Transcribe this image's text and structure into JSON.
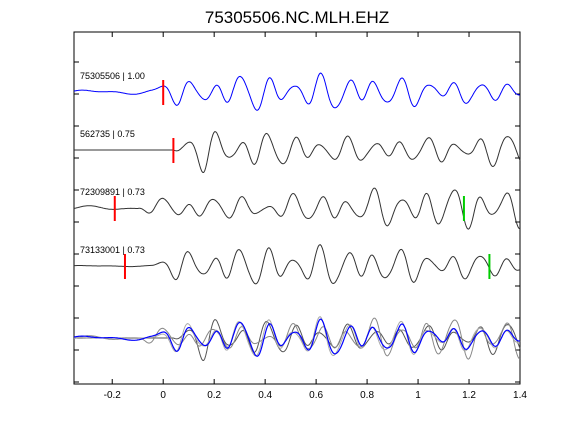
{
  "chart_data": {
    "type": "line",
    "title": "75305506.NC.MLH.EHZ",
    "xlabel": "",
    "ylabel": "",
    "xlim": [
      -0.35,
      1.4
    ],
    "xticks": [
      -0.2,
      0,
      0.2,
      0.4,
      0.6,
      0.8,
      1,
      1.2,
      1.4
    ],
    "xtick_labels": [
      "-0.2",
      "0",
      "0.2",
      "0.4",
      "0.6",
      "0.8",
      "1",
      "1.2",
      "1.4"
    ],
    "grid": false,
    "traces": [
      {
        "label": "75305506 | 1.00",
        "color": "#0000ff",
        "pick_red": 0.0,
        "pick_green": null,
        "onset": -0.05,
        "amplitude": 0.75,
        "pre_noise": 0.12,
        "x_pairs": [
          -0.35,
          1.4
        ]
      },
      {
        "label": "562735 | 0.75",
        "color": "#333333",
        "pick_red": 0.04,
        "pick_green": null,
        "onset": 0.04,
        "amplitude": 1.0,
        "pre_noise": 0.0,
        "x_pairs": [
          -0.35,
          1.4
        ]
      },
      {
        "label": "72309891 | 0.73",
        "color": "#333333",
        "pick_red": -0.19,
        "pick_green": 1.18,
        "onset": -0.1,
        "amplitude": 0.9,
        "pre_noise": 0.1,
        "x_pairs": [
          -0.35,
          1.4
        ]
      },
      {
        "label": "73133001 | 0.73",
        "color": "#333333",
        "pick_red": -0.15,
        "pick_green": 1.28,
        "onset": -0.05,
        "amplitude": 0.85,
        "pre_noise": 0.03,
        "x_pairs": [
          -0.35,
          1.4
        ]
      }
    ],
    "stack": {
      "label": "",
      "colors": [
        "#0000ff",
        "#555555",
        "#888888",
        "#aaaaaa"
      ]
    },
    "colors": {
      "red_pick": "#ff0000",
      "green_pick": "#00cc00",
      "axis": "#000000"
    }
  }
}
